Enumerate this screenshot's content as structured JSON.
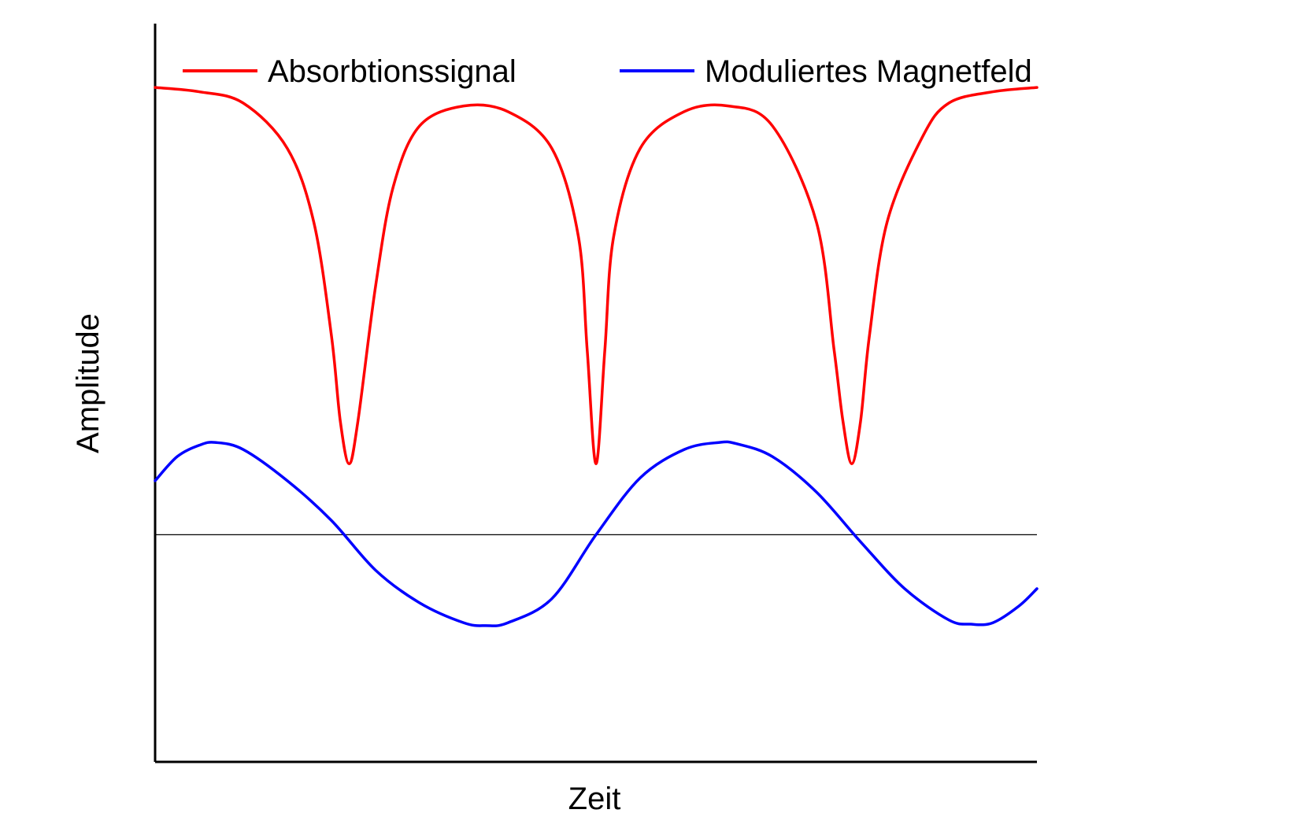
{
  "chart_data": {
    "type": "line",
    "title": "",
    "xlabel": "Zeit",
    "ylabel": "Amplitude",
    "xlim": [
      0,
      1
    ],
    "ylim": [
      -1.6,
      3.6
    ],
    "grid": false,
    "zero_line": true,
    "legend": {
      "placement": "top",
      "orientation": "horizontal"
    },
    "series": [
      {
        "name": "Absorbtionssignal",
        "color": "#ff0000",
        "x": [
          0,
          0.05,
          0.1,
          0.15,
          0.18,
          0.2,
          0.21,
          0.22,
          0.23,
          0.25,
          0.27,
          0.3,
          0.35,
          0.4,
          0.45,
          0.48,
          0.49,
          0.5,
          0.51,
          0.52,
          0.55,
          0.6,
          0.65,
          0.7,
          0.75,
          0.77,
          0.78,
          0.79,
          0.8,
          0.81,
          0.83,
          0.87,
          0.9,
          0.95,
          1
        ],
        "y": [
          3.15,
          3.12,
          3.04,
          2.72,
          2.2,
          1.4,
          0.8,
          0.5,
          0.8,
          1.75,
          2.45,
          2.88,
          3.02,
          2.98,
          2.72,
          2.1,
          1.3,
          0.5,
          1.3,
          2.1,
          2.72,
          2.98,
          3.02,
          2.88,
          2.2,
          1.3,
          0.8,
          0.5,
          0.8,
          1.4,
          2.2,
          2.8,
          3.04,
          3.12,
          3.15
        ]
      },
      {
        "name": "Moduliertes Magnetfeld",
        "color": "#0000ff",
        "x": [
          0,
          0.025,
          0.05,
          0.068,
          0.1,
          0.15,
          0.2,
          0.25,
          0.3,
          0.35,
          0.375,
          0.4,
          0.45,
          0.5,
          0.55,
          0.6,
          0.64,
          0.66,
          0.7,
          0.75,
          0.8,
          0.85,
          0.9,
          0.925,
          0.95,
          0.98,
          1
        ],
        "y": [
          0.38,
          0.55,
          0.63,
          0.65,
          0.6,
          0.38,
          0.1,
          -0.25,
          -0.48,
          -0.62,
          -0.64,
          -0.62,
          -0.45,
          0,
          0.4,
          0.6,
          0.65,
          0.64,
          0.55,
          0.3,
          -0.05,
          -0.38,
          -0.6,
          -0.63,
          -0.62,
          -0.5,
          -0.38
        ]
      }
    ]
  }
}
